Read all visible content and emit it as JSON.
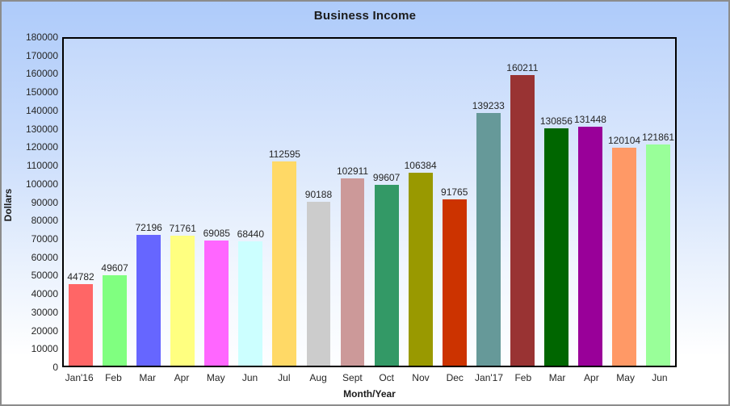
{
  "chart": {
    "title": "Business Income",
    "ylabel": "Dollars",
    "xlabel": "Month/Year"
  },
  "chart_data": {
    "type": "bar",
    "title": "Business Income",
    "xlabel": "Month/Year",
    "ylabel": "Dollars",
    "ylim": [
      0,
      180000
    ],
    "ytick_step": 10000,
    "grid": false,
    "legend": false,
    "value_labels_shown": true,
    "categories": [
      "Jan'16",
      "Feb",
      "Mar",
      "Apr",
      "May",
      "Jun",
      "Jul",
      "Aug",
      "Sept",
      "Oct",
      "Nov",
      "Dec",
      "Jan'17",
      "Feb",
      "Mar",
      "Apr",
      "May",
      "Jun"
    ],
    "values": [
      44782,
      49607,
      72196,
      71761,
      69085,
      68440,
      112595,
      90188,
      102911,
      99607,
      106384,
      91765,
      139233,
      160211,
      130856,
      131448,
      120104,
      121861
    ],
    "bar_colors": [
      "#FF6666",
      "#80FF80",
      "#6666FF",
      "#FFFF80",
      "#FF66FF",
      "#CCFFFF",
      "#FFD966",
      "#CCCCCC",
      "#CC9999",
      "#339966",
      "#999900",
      "#CC3300",
      "#669999",
      "#993333",
      "#006600",
      "#990099",
      "#FF9966",
      "#99FF99"
    ]
  },
  "colors": {
    "background_top": "#AECBFA",
    "background_bottom": "#FFFFFF",
    "plot_background_top": "#C3D8FB",
    "axis_line": "#000000",
    "text": "#262626",
    "outer_border": "#8C8C8C"
  }
}
